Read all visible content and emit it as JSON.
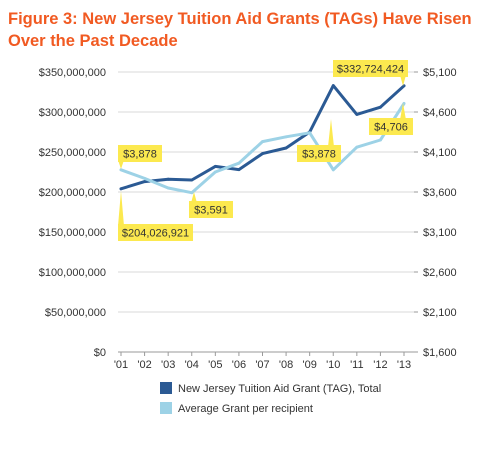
{
  "title": "Figure 3: New Jersey Tuition Aid Grants (TAGs) Have Risen Over the Past Decade",
  "colors": {
    "title": "#f15a22",
    "tag_total": "#2b5a94",
    "avg_grant": "#9dd2e6",
    "callout": "#fce94f",
    "grid": "#d8d8d8"
  },
  "chart_data": {
    "type": "line",
    "categories": [
      "'01",
      "'02",
      "'03",
      "'04",
      "'05",
      "'06",
      "'07",
      "'08",
      "'09",
      "'10",
      "'11",
      "'12",
      "'13"
    ],
    "left_axis": {
      "ylim": [
        0,
        350000000
      ],
      "ticks": [
        0,
        50000000,
        100000000,
        150000000,
        200000000,
        250000000,
        300000000,
        350000000
      ],
      "tick_labels": [
        "$0",
        "$50,000,000",
        "$100,000,000",
        "$150,000,000",
        "$200,000,000",
        "$250,000,000",
        "$300,000,000",
        "$350,000,000"
      ]
    },
    "right_axis": {
      "ylim": [
        1600,
        5100
      ],
      "ticks": [
        1600,
        2100,
        2600,
        3100,
        3600,
        4100,
        4600,
        5100
      ],
      "tick_labels": [
        "$1,600",
        "$2,100",
        "$2,600",
        "$3,100",
        "$3,600",
        "$4,100",
        "$4,600",
        "$5,100"
      ]
    },
    "grid": true,
    "legend_position": "bottom",
    "series": [
      {
        "name": "New Jersey Tuition Aid Grant (TAG), Total",
        "axis": "left",
        "color": "#2b5a94",
        "values": [
          204026921,
          213000000,
          216000000,
          215000000,
          232000000,
          228000000,
          248000000,
          255000000,
          275000000,
          333000000,
          297000000,
          306000000,
          332724424
        ]
      },
      {
        "name": "Average Grant per recipient",
        "axis": "right",
        "color": "#9dd2e6",
        "values": [
          3878,
          3770,
          3650,
          3591,
          3850,
          3960,
          4230,
          4290,
          4340,
          3878,
          4160,
          4250,
          4706
        ]
      }
    ],
    "annotations": [
      {
        "text": "$3,878",
        "series": 1,
        "index": 0
      },
      {
        "text": "$204,026,921",
        "series": 0,
        "index": 0
      },
      {
        "text": "$3,591",
        "series": 1,
        "index": 3
      },
      {
        "text": "$3,878",
        "series": 1,
        "index": 9
      },
      {
        "text": "$332,724,424",
        "series": 0,
        "index": 12
      },
      {
        "text": "$4,706",
        "series": 1,
        "index": 12
      }
    ]
  }
}
